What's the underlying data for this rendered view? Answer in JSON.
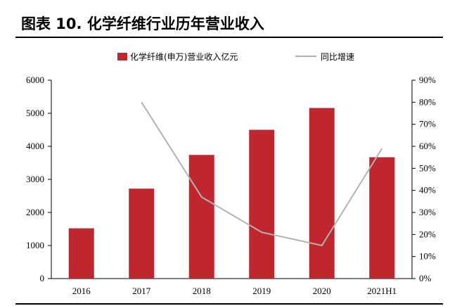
{
  "title": "图表 10. 化学纤维行业历年营业收入",
  "chart_data": {
    "type": "bar",
    "categories": [
      "2016",
      "2017",
      "2018",
      "2019",
      "2020",
      "2021H1"
    ],
    "series": [
      {
        "name": "化学纤维(申万)营业收入亿元",
        "type": "bar",
        "axis": "left",
        "values": [
          1520,
          2720,
          3740,
          4500,
          5160,
          3670
        ],
        "color": "#c0262e"
      },
      {
        "name": "同比增速",
        "type": "line",
        "axis": "right",
        "values": [
          null,
          0.8,
          0.37,
          0.21,
          0.15,
          0.59
        ],
        "color": "#b3b3b3"
      }
    ],
    "y_left": {
      "min": 0,
      "max": 6000,
      "ticks": [
        "0",
        "1000",
        "2000",
        "3000",
        "4000",
        "5000",
        "6000"
      ]
    },
    "y_right": {
      "min": 0,
      "max": 0.9,
      "ticks": [
        "0%",
        "10%",
        "20%",
        "30%",
        "40%",
        "50%",
        "60%",
        "70%",
        "80%",
        "90%"
      ]
    },
    "legend": "top-center",
    "grid": false
  }
}
